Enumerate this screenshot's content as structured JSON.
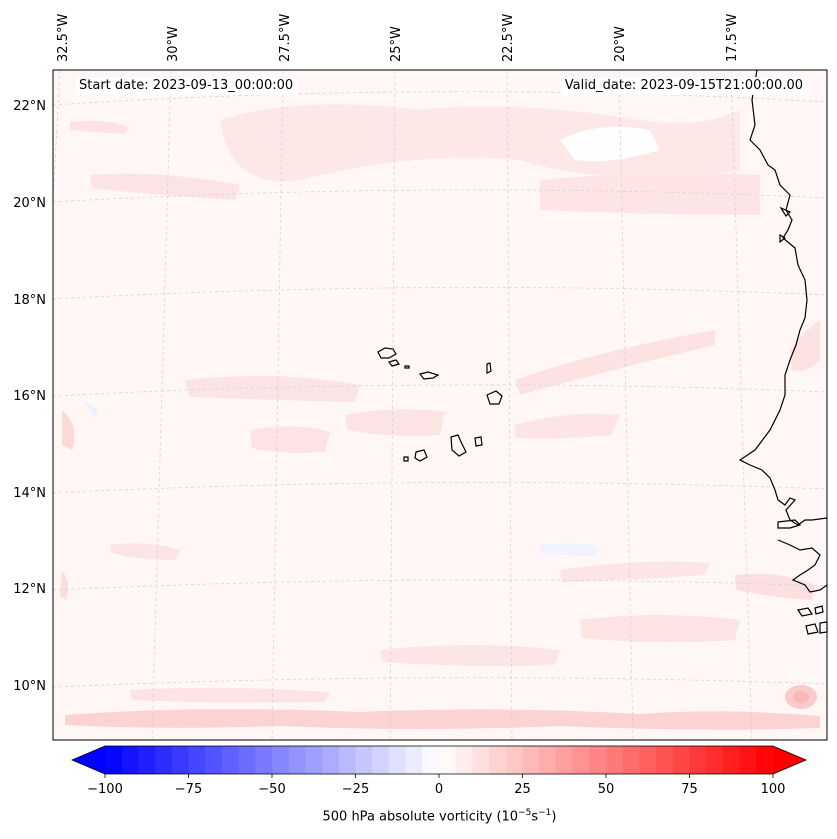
{
  "map": {
    "start_date_text": "Start date: 2023-09-13_00:00:00",
    "valid_date_text": "Valid_date: 2023-09-15T21:00:00.00",
    "field": "500 hPa absolute vorticity",
    "background_color": "#fff5f5",
    "coastline_color": "#000000",
    "gridline_style": "dashed-light-gray"
  },
  "axes": {
    "lat_labels": [
      "22°N",
      "20°N",
      "18°N",
      "16°N",
      "14°N",
      "12°N",
      "10°N"
    ],
    "lon_labels": [
      "32.5°W",
      "30°W",
      "27.5°W",
      "25°W",
      "22.5°W",
      "20°W",
      "17.5°W"
    ]
  },
  "colorbar": {
    "label_main": "500 hPa absolute vorticity (10",
    "label_exp1": "−5",
    "label_mid": "s",
    "label_exp2": "−1",
    "label_end": ")",
    "ticks": [
      "−100",
      "−75",
      "−50",
      "−25",
      "0",
      "25",
      "50",
      "75",
      "100"
    ],
    "range": [
      -100,
      100
    ],
    "step": 5,
    "extend": "both",
    "cmap": "bwr",
    "low_color": "#0000ff",
    "mid_color": "#ffffff",
    "high_color": "#ff0000"
  },
  "features": {
    "regions": [
      "Cape Verde islands",
      "West African coast (Senegal, Gambia, Guinea-Bissau)"
    ]
  }
}
